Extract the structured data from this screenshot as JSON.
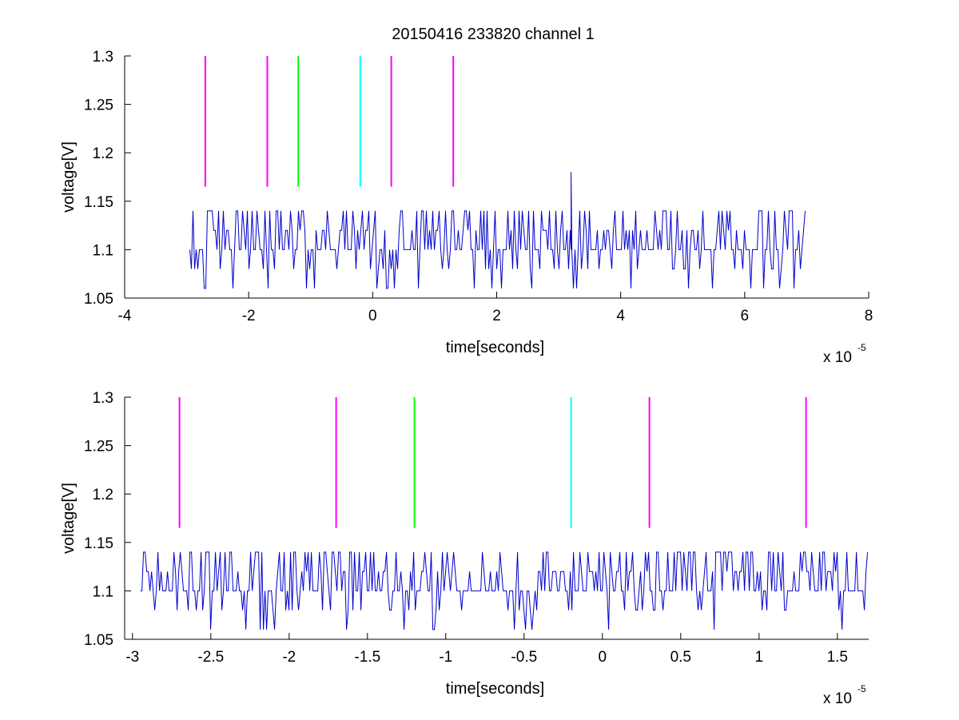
{
  "figure": {
    "title": "20150416 233820 channel 1"
  },
  "colors": {
    "trace": "#0000cc",
    "axes": "#000000",
    "magenta": "#ff00ff",
    "green": "#00ff00",
    "cyan": "#00ffff"
  },
  "chart_data": [
    {
      "type": "line",
      "title": "20150416 233820 channel 1",
      "xlabel": "time[seconds]",
      "ylabel": "voltage[V]",
      "x_multiplier_label": "x 10",
      "x_multiplier_exponent": "-5",
      "xlim": [
        -4,
        8
      ],
      "ylim": [
        1.05,
        1.3
      ],
      "x_ticks": [
        -4,
        -2,
        0,
        2,
        4,
        6,
        8
      ],
      "x_tick_labels": [
        "-4",
        "-2",
        "0",
        "2",
        "4",
        "6",
        "8"
      ],
      "y_ticks": [
        1.05,
        1.1,
        1.15,
        1.2,
        1.25,
        1.3
      ],
      "y_tick_labels": [
        "1.05",
        "1.1",
        "1.15",
        "1.2",
        "1.25",
        "1.3"
      ],
      "grid": false,
      "series": [
        {
          "trace": "voltage",
          "x_range": [
            -2.95,
            7.0
          ],
          "baseline": 1.1,
          "levels": [
            1.06,
            1.08,
            1.1,
            1.12,
            1.14
          ],
          "peak": {
            "x": 3.2,
            "y": 1.18
          },
          "seed": 7
        }
      ],
      "markers": [
        {
          "x": -2.7,
          "y_range": [
            1.165,
            1.3
          ],
          "color": "magenta"
        },
        {
          "x": -1.7,
          "y_range": [
            1.165,
            1.3
          ],
          "color": "magenta"
        },
        {
          "x": -1.2,
          "y_range": [
            1.165,
            1.3
          ],
          "color": "green"
        },
        {
          "x": -0.2,
          "y_range": [
            1.165,
            1.3
          ],
          "color": "cyan"
        },
        {
          "x": 0.3,
          "y_range": [
            1.165,
            1.3
          ],
          "color": "magenta"
        },
        {
          "x": 1.3,
          "y_range": [
            1.165,
            1.3
          ],
          "color": "magenta"
        }
      ]
    },
    {
      "type": "line",
      "title": "",
      "xlabel": "time[seconds]",
      "ylabel": "voltage[V]",
      "x_multiplier_label": "x 10",
      "x_multiplier_exponent": "-5",
      "xlim": [
        -3.05,
        1.7
      ],
      "ylim": [
        1.05,
        1.3
      ],
      "x_ticks": [
        -3,
        -2.5,
        -2,
        -1.5,
        -1,
        -0.5,
        0,
        0.5,
        1,
        1.5
      ],
      "x_tick_labels": [
        "-3",
        "-2.5",
        "-2",
        "-1.5",
        "-1",
        "-0.5",
        "0",
        "0.5",
        "1",
        "1.5"
      ],
      "y_ticks": [
        1.05,
        1.1,
        1.15,
        1.2,
        1.25,
        1.3
      ],
      "y_tick_labels": [
        "1.05",
        "1.1",
        "1.15",
        "1.2",
        "1.25",
        "1.3"
      ],
      "grid": false,
      "series": [
        {
          "trace": "voltage",
          "x_range": [
            -2.95,
            1.7
          ],
          "baseline": 1.1,
          "levels": [
            1.06,
            1.08,
            1.1,
            1.12,
            1.14
          ],
          "seed": 23
        }
      ],
      "markers": [
        {
          "x": -2.7,
          "y_range": [
            1.165,
            1.3
          ],
          "color": "magenta"
        },
        {
          "x": -1.7,
          "y_range": [
            1.165,
            1.3
          ],
          "color": "magenta"
        },
        {
          "x": -1.2,
          "y_range": [
            1.165,
            1.3
          ],
          "color": "green"
        },
        {
          "x": -0.2,
          "y_range": [
            1.165,
            1.3
          ],
          "color": "cyan"
        },
        {
          "x": 0.3,
          "y_range": [
            1.165,
            1.3
          ],
          "color": "magenta"
        },
        {
          "x": 1.3,
          "y_range": [
            1.165,
            1.3
          ],
          "color": "magenta"
        }
      ]
    }
  ]
}
